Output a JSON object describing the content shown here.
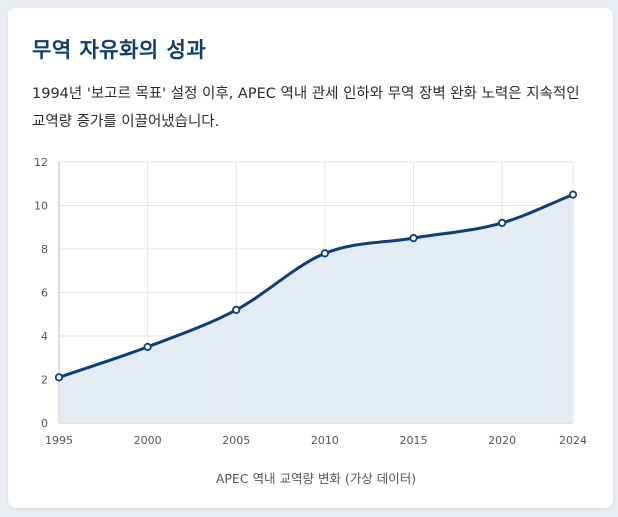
{
  "card": {
    "title": "무역 자유화의 성과",
    "description": "1994년 '보고르 목표' 설정 이후, APEC 역내 관세 인하와 무역 장벽 완화 노력은 지속적인 교역량 증가를 이끌어냈습니다."
  },
  "chart_data": {
    "type": "area",
    "x": [
      1995,
      2000,
      2005,
      2010,
      2015,
      2020,
      2024
    ],
    "series": [
      {
        "values": [
          2.1,
          3.5,
          5.2,
          7.8,
          8.5,
          9.2,
          10.5
        ]
      }
    ],
    "xlabel": "APEC 역내 교역량 변화 (가상 데이터)",
    "ylabel": "",
    "xticks": [
      "1995",
      "2000",
      "2005",
      "2010",
      "2015",
      "2020",
      "2024"
    ],
    "yticks": [
      "0",
      "2",
      "4",
      "6",
      "8",
      "10",
      "12"
    ],
    "ylim": [
      0,
      12
    ],
    "grid": true,
    "line_color": "#0a3f78",
    "fill_color": "#e2e9f1"
  }
}
